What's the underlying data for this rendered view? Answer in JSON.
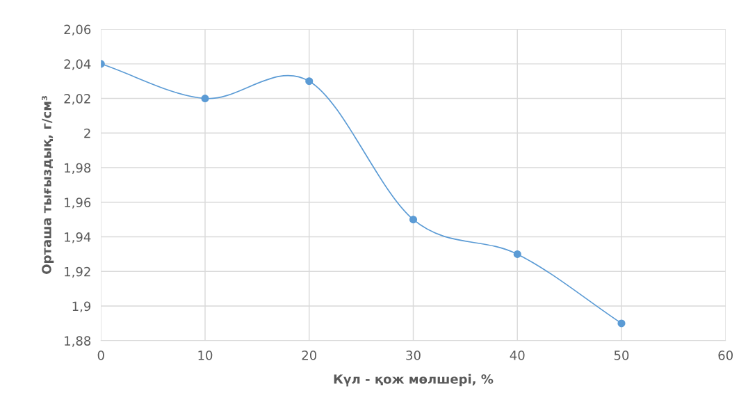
{
  "chart_data": {
    "type": "line",
    "xlabel": "Күл - қож мөлшері, %",
    "ylabel": "Орташа тығыздық, г/см³",
    "x": [
      0,
      10,
      20,
      30,
      40,
      50
    ],
    "series": [
      {
        "color": "#5b9bd5",
        "values": [
          2.04,
          2.02,
          2.03,
          1.95,
          1.93,
          1.89
        ]
      }
    ],
    "xlim": [
      0,
      60
    ],
    "xticks": [
      0,
      10,
      20,
      30,
      40,
      50,
      60
    ],
    "ylim": [
      1.88,
      2.06
    ],
    "yticks": [
      {
        "value": 1.88,
        "label": "1,88"
      },
      {
        "value": 1.9,
        "label": "1,9"
      },
      {
        "value": 1.92,
        "label": "1,92"
      },
      {
        "value": 1.94,
        "label": "1,94"
      },
      {
        "value": 1.96,
        "label": "1,96"
      },
      {
        "value": 1.98,
        "label": "1,98"
      },
      {
        "value": 2,
        "label": "2"
      },
      {
        "value": 2.02,
        "label": "2,02"
      },
      {
        "value": 2.04,
        "label": "2,04"
      },
      {
        "value": 2.06,
        "label": "2,06"
      }
    ],
    "grid": true,
    "marker": "circle",
    "line_style": "solid",
    "legend": false
  }
}
